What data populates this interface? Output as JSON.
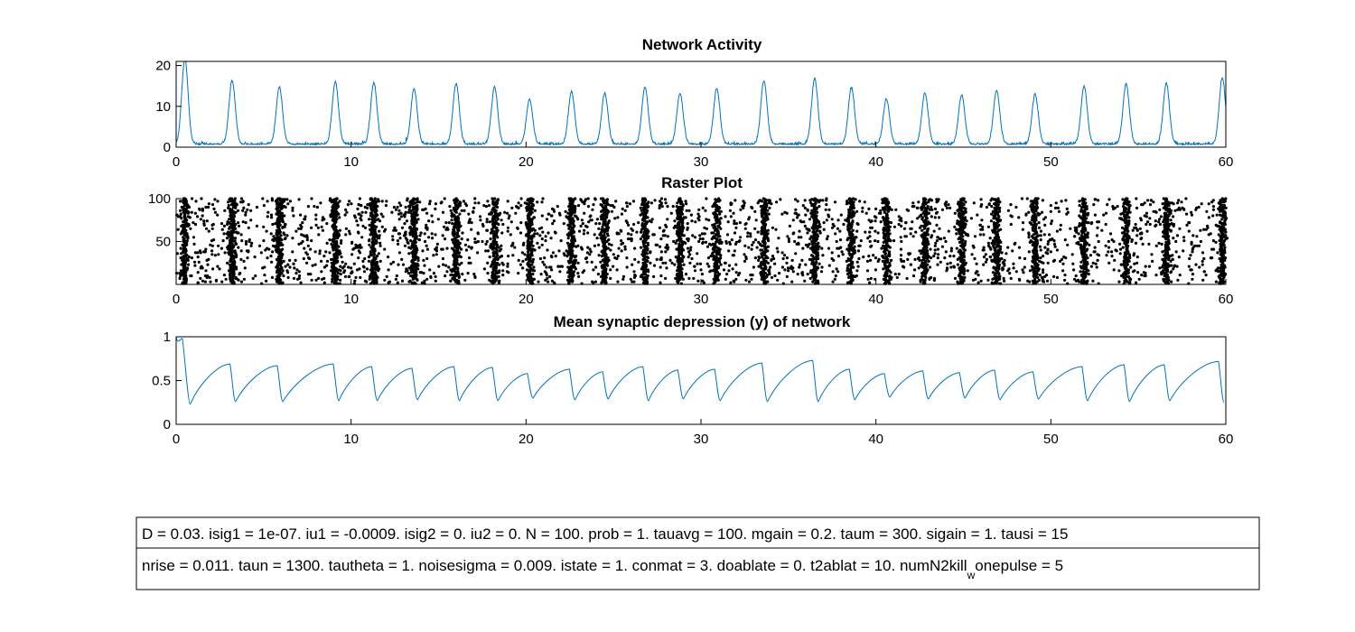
{
  "chart_data": [
    {
      "type": "line",
      "title": "Network Activity",
      "xlabel": "",
      "ylabel": "",
      "xlim": [
        0,
        60
      ],
      "ylim": [
        0,
        21
      ],
      "xticks": [
        "0",
        "10",
        "20",
        "30",
        "40",
        "50",
        "60"
      ],
      "yticks": [
        "0",
        "10",
        "20"
      ],
      "color": "#0072bd",
      "baseline": 0.6,
      "peaks": [
        {
          "t": 0.5,
          "v": 21
        },
        {
          "t": 3.2,
          "v": 15.5
        },
        {
          "t": 5.9,
          "v": 14
        },
        {
          "t": 9.1,
          "v": 15.2
        },
        {
          "t": 11.3,
          "v": 15
        },
        {
          "t": 13.6,
          "v": 13.5
        },
        {
          "t": 16.0,
          "v": 14.8
        },
        {
          "t": 18.2,
          "v": 14
        },
        {
          "t": 20.2,
          "v": 11
        },
        {
          "t": 22.6,
          "v": 12.8
        },
        {
          "t": 24.5,
          "v": 12.5
        },
        {
          "t": 26.8,
          "v": 14
        },
        {
          "t": 28.8,
          "v": 12.5
        },
        {
          "t": 30.9,
          "v": 13.5
        },
        {
          "t": 33.6,
          "v": 15.5
        },
        {
          "t": 36.5,
          "v": 16
        },
        {
          "t": 38.6,
          "v": 13.8
        },
        {
          "t": 40.6,
          "v": 11
        },
        {
          "t": 42.8,
          "v": 12.5
        },
        {
          "t": 44.9,
          "v": 12
        },
        {
          "t": 46.9,
          "v": 13.2
        },
        {
          "t": 49.1,
          "v": 12.2
        },
        {
          "t": 51.9,
          "v": 14
        },
        {
          "t": 54.3,
          "v": 14.8
        },
        {
          "t": 56.6,
          "v": 14.8
        },
        {
          "t": 59.8,
          "v": 16.2
        }
      ]
    },
    {
      "type": "scatter",
      "title": "Raster Plot",
      "xlabel": "",
      "ylabel": "",
      "xlim": [
        0,
        60
      ],
      "ylim": [
        0,
        100
      ],
      "xticks": [
        "0",
        "10",
        "20",
        "30",
        "40",
        "50",
        "60"
      ],
      "yticks": [
        "50",
        "100"
      ],
      "color": "#000000",
      "neurons": 100,
      "burst_times": [
        0.5,
        3.2,
        5.9,
        9.1,
        11.3,
        13.6,
        16.0,
        18.2,
        20.2,
        22.6,
        24.5,
        26.8,
        28.8,
        30.9,
        33.6,
        36.5,
        38.6,
        40.6,
        42.8,
        44.9,
        46.9,
        49.1,
        51.9,
        54.3,
        56.6,
        59.8
      ]
    },
    {
      "type": "line",
      "title": "Mean synaptic depression (y) of network",
      "xlabel": "",
      "ylabel": "",
      "xlim": [
        0,
        60
      ],
      "ylim": [
        0,
        1
      ],
      "xticks": [
        "0",
        "10",
        "20",
        "30",
        "40",
        "50",
        "60"
      ],
      "yticks": [
        "0",
        "0.5",
        "1"
      ],
      "color": "#0072bd",
      "start_value": 1,
      "troughs": [
        {
          "t": 0.8,
          "min": 0.23,
          "max_before": 1.0
        },
        {
          "t": 3.4,
          "min": 0.26,
          "max_before": 0.69
        },
        {
          "t": 6.1,
          "min": 0.26,
          "max_before": 0.67
        },
        {
          "t": 9.3,
          "min": 0.27,
          "max_before": 0.69
        },
        {
          "t": 11.5,
          "min": 0.27,
          "max_before": 0.66
        },
        {
          "t": 13.8,
          "min": 0.28,
          "max_before": 0.64
        },
        {
          "t": 16.2,
          "min": 0.27,
          "max_before": 0.66
        },
        {
          "t": 18.4,
          "min": 0.27,
          "max_before": 0.65
        },
        {
          "t": 20.4,
          "min": 0.3,
          "max_before": 0.58
        },
        {
          "t": 22.8,
          "min": 0.28,
          "max_before": 0.63
        },
        {
          "t": 24.7,
          "min": 0.29,
          "max_before": 0.6
        },
        {
          "t": 27.0,
          "min": 0.27,
          "max_before": 0.66
        },
        {
          "t": 29.0,
          "min": 0.29,
          "max_before": 0.62
        },
        {
          "t": 31.1,
          "min": 0.27,
          "max_before": 0.63
        },
        {
          "t": 33.8,
          "min": 0.26,
          "max_before": 0.7
        },
        {
          "t": 36.7,
          "min": 0.26,
          "max_before": 0.73
        },
        {
          "t": 38.8,
          "min": 0.28,
          "max_before": 0.63
        },
        {
          "t": 40.8,
          "min": 0.31,
          "max_before": 0.58
        },
        {
          "t": 43.0,
          "min": 0.29,
          "max_before": 0.61
        },
        {
          "t": 45.1,
          "min": 0.3,
          "max_before": 0.59
        },
        {
          "t": 47.1,
          "min": 0.28,
          "max_before": 0.62
        },
        {
          "t": 49.3,
          "min": 0.29,
          "max_before": 0.6
        },
        {
          "t": 52.1,
          "min": 0.27,
          "max_before": 0.66
        },
        {
          "t": 54.5,
          "min": 0.26,
          "max_before": 0.68
        },
        {
          "t": 56.8,
          "min": 0.27,
          "max_before": 0.68
        },
        {
          "t": 59.9,
          "min": 0.25,
          "max_before": 0.72
        }
      ]
    }
  ],
  "params": {
    "line1": "D = 0.03. isig1 = 1e-07. iu1 = -0.0009. isig2 = 0. iu2 = 0. N = 100. prob = 1. tauavg = 100. mgain = 0.2. taum = 300. sigain = 1. tausi = 15",
    "line2_main": "nrise = 0.011. taun = 1300. tautheta = 1. noisesigma = 0.009. istate = 1. conmat = 3. doablate = 0. t2ablat = 10. numN2kill",
    "line2_sub": "w",
    "line2_tail": "onepulse = 5"
  }
}
